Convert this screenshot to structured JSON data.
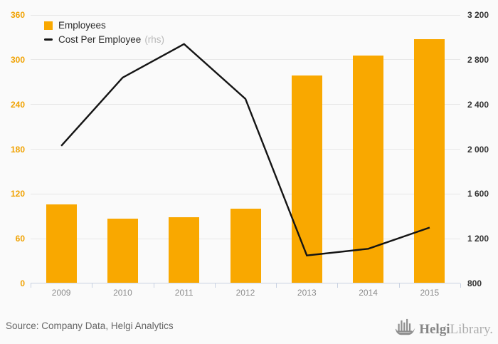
{
  "chart_data": {
    "type": "bar",
    "categories": [
      "2009",
      "2010",
      "2011",
      "2012",
      "2013",
      "2014",
      "2015"
    ],
    "series": [
      {
        "name": "Employees",
        "type": "bar",
        "axis": "left",
        "values": [
          106,
          87,
          89,
          100,
          279,
          306,
          328
        ]
      },
      {
        "name": "Cost Per Employee",
        "axis_tag": "(rhs)",
        "type": "line",
        "axis": "right",
        "values": [
          2030,
          2640,
          2940,
          2450,
          1050,
          1110,
          1300
        ]
      }
    ],
    "left_axis": {
      "min": 0,
      "max": 360,
      "step": 60,
      "labels": [
        "0",
        "60",
        "120",
        "180",
        "240",
        "300",
        "360"
      ]
    },
    "right_axis": {
      "min": 800,
      "max": 3200,
      "step": 400,
      "labels": [
        "800",
        "1 200",
        "1 600",
        "2 000",
        "2 400",
        "2 800",
        "3 200"
      ]
    },
    "grid": true,
    "legend_position": "top-left"
  },
  "footer": {
    "source": "Source: Company Data, Helgi Analytics",
    "logo": {
      "bold": "Helgi",
      "light": "Library."
    }
  },
  "colors": {
    "bar": "#F9A800",
    "line": "#141414",
    "left_axis_label": "#F0A202",
    "right_axis_label": "#333333",
    "x_axis_label": "#8C8C8C",
    "gridline": "#E7E7E7",
    "axis_line": "#C9D2E2",
    "background": "#FAFAFA",
    "rhs_tag": "#B9B9B9",
    "source_text": "#666666",
    "logo_gray": "#858585"
  }
}
